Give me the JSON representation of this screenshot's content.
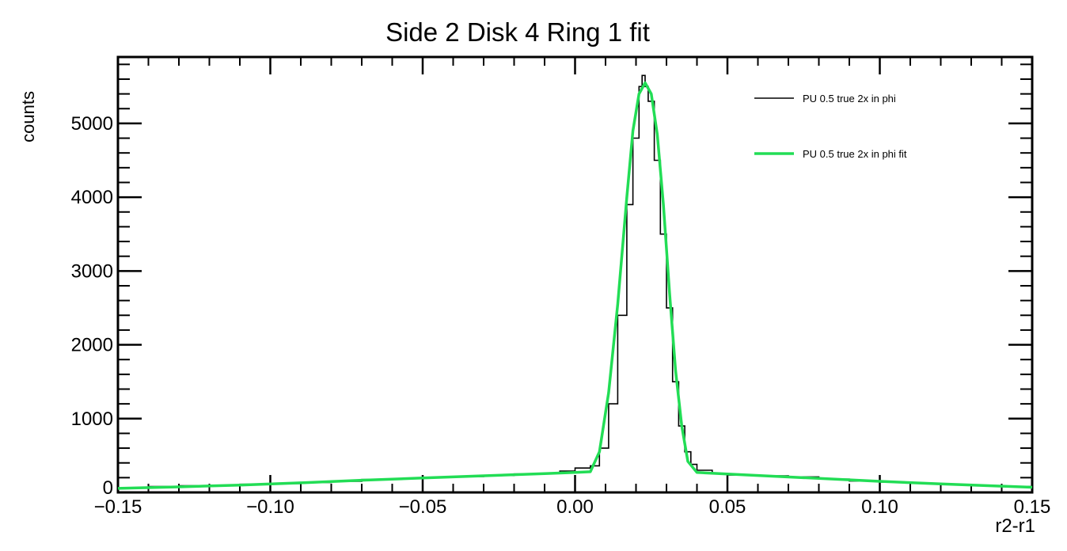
{
  "chart_data": {
    "type": "line",
    "title": "Side 2 Disk 4 Ring 1 fit",
    "xlabel": "r2-r1",
    "ylabel": "counts",
    "xlim": [
      -0.15,
      0.15
    ],
    "ylim": [
      0,
      5900
    ],
    "x_ticks": [
      -0.15,
      -0.1,
      -0.05,
      0.0,
      0.05,
      0.1,
      0.15
    ],
    "x_tick_labels": [
      "−0.15",
      "−0.10",
      "−0.05",
      "0.00",
      "0.05",
      "0.10",
      "0.15"
    ],
    "y_ticks": [
      0,
      1000,
      2000,
      3000,
      4000,
      5000
    ],
    "y_tick_labels": [
      "0",
      "1000",
      "2000",
      "3000",
      "4000",
      "5000"
    ],
    "legend_position": "top-right",
    "grid": false,
    "series": [
      {
        "name": "PU 0.5 true 2x in phi",
        "kind": "histogram",
        "color": "#000000",
        "x": [
          -0.15,
          -0.14,
          -0.13,
          -0.12,
          -0.11,
          -0.1,
          -0.09,
          -0.08,
          -0.07,
          -0.06,
          -0.05,
          -0.04,
          -0.03,
          -0.02,
          -0.01,
          -0.005,
          0.0,
          0.005,
          0.008,
          0.011,
          0.014,
          0.017,
          0.019,
          0.021,
          0.022,
          0.023,
          0.024,
          0.026,
          0.028,
          0.03,
          0.032,
          0.034,
          0.036,
          0.038,
          0.04,
          0.045,
          0.05,
          0.06,
          0.07,
          0.08,
          0.09,
          0.1,
          0.11,
          0.12,
          0.13,
          0.14,
          0.15
        ],
        "y": [
          60,
          80,
          90,
          95,
          110,
          120,
          135,
          150,
          175,
          190,
          205,
          215,
          230,
          250,
          265,
          290,
          330,
          360,
          600,
          1200,
          2400,
          3900,
          4800,
          5500,
          5650,
          5500,
          5300,
          4500,
          3500,
          2500,
          1500,
          900,
          550,
          380,
          300,
          250,
          235,
          225,
          210,
          180,
          155,
          140,
          125,
          105,
          90,
          80,
          70
        ]
      },
      {
        "name": "PU 0.5 true 2x in phi fit",
        "kind": "line",
        "color": "#22dd55",
        "x": [
          -0.15,
          -0.13,
          -0.11,
          -0.09,
          -0.07,
          -0.05,
          -0.03,
          -0.01,
          0.0,
          0.005,
          0.008,
          0.011,
          0.014,
          0.017,
          0.019,
          0.021,
          0.023,
          0.025,
          0.027,
          0.029,
          0.031,
          0.033,
          0.035,
          0.037,
          0.04,
          0.05,
          0.06,
          0.08,
          0.1,
          0.12,
          0.14,
          0.15
        ],
        "y": [
          55,
          75,
          100,
          130,
          165,
          195,
          225,
          255,
          270,
          280,
          550,
          1350,
          2550,
          4000,
          4900,
          5400,
          5550,
          5400,
          4850,
          3900,
          2700,
          1650,
          900,
          420,
          270,
          250,
          230,
          190,
          150,
          115,
          85,
          70
        ]
      }
    ]
  }
}
